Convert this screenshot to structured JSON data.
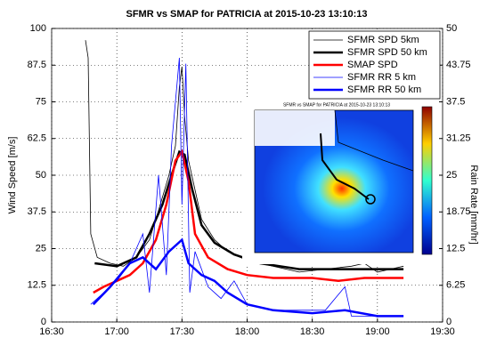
{
  "chart_data": {
    "type": "line",
    "title": "SFMR vs SMAP for PATRICIA at 2015-10-23 13:10:13",
    "ylabel": "Wind Speed [m/s]",
    "y2label": "Rain Rate [mm/hr]",
    "xlim": [
      16.5,
      19.5
    ],
    "xticks": [
      {
        "value": 16.5,
        "label": "16:30"
      },
      {
        "value": 17,
        "label": "17:00"
      },
      {
        "value": 17.5,
        "label": "17:30"
      },
      {
        "value": 18,
        "label": "18:00"
      },
      {
        "value": 18.5,
        "label": "18:30"
      },
      {
        "value": 19,
        "label": "19:00"
      },
      {
        "value": 19.5,
        "label": "19:30"
      }
    ],
    "ylim": [
      0,
      100
    ],
    "yticks": [
      0,
      12.5,
      25,
      37.5,
      50,
      62.5,
      75,
      87.5,
      100
    ],
    "y2lim": [
      0,
      50
    ],
    "y2ticks": [
      0,
      6.25,
      12.5,
      18.75,
      25,
      31.25,
      37.5,
      43.75,
      50
    ],
    "grid": true,
    "legend": "upper right",
    "series": [
      {
        "name": "SFMR SPD 5km",
        "color": "#000000",
        "width": 0.8,
        "x": [
          16.76,
          16.78,
          16.8,
          16.85,
          16.95,
          17.05,
          17.15,
          17.25,
          17.32,
          17.4,
          17.45,
          17.48,
          17.5,
          17.52,
          17.55,
          17.6,
          17.65,
          17.75,
          17.85,
          18.0,
          18.2,
          18.4,
          18.6,
          18.8,
          18.9,
          19.0,
          19.1,
          19.2
        ],
        "values": [
          96,
          90,
          30,
          22,
          20,
          19,
          22,
          28,
          38,
          50,
          60,
          80,
          87,
          70,
          55,
          45,
          35,
          28,
          24,
          21,
          19,
          17,
          18,
          19,
          20,
          17,
          18,
          19
        ]
      },
      {
        "name": "SFMR SPD 50 km",
        "color": "#000000",
        "width": 2.5,
        "x": [
          16.83,
          17.0,
          17.15,
          17.25,
          17.35,
          17.42,
          17.48,
          17.52,
          17.58,
          17.65,
          17.75,
          17.9,
          18.1,
          18.4,
          18.7,
          18.9,
          19.1,
          19.2
        ],
        "values": [
          20,
          19,
          22,
          30,
          40,
          50,
          58,
          57,
          45,
          33,
          27,
          23,
          20,
          18,
          18,
          18,
          18,
          18
        ]
      },
      {
        "name": "SMAP SPD",
        "color": "#ff0000",
        "width": 2.5,
        "x": [
          16.82,
          16.9,
          17.0,
          17.1,
          17.2,
          17.3,
          17.38,
          17.45,
          17.5,
          17.55,
          17.6,
          17.7,
          17.85,
          18.0,
          18.2,
          18.5,
          18.7,
          18.9,
          19.1,
          19.2
        ],
        "values": [
          10,
          12,
          14,
          16,
          20,
          28,
          40,
          55,
          58,
          48,
          30,
          22,
          18,
          16,
          15,
          15,
          14,
          15,
          15,
          15
        ]
      },
      {
        "name": "SFMR RR 5 km",
        "color": "#0000ff",
        "width": 0.8,
        "axis": "y2",
        "x": [
          16.8,
          16.9,
          17.0,
          17.1,
          17.2,
          17.25,
          17.32,
          17.38,
          17.42,
          17.48,
          17.5,
          17.53,
          17.56,
          17.6,
          17.7,
          17.8,
          17.9,
          18.0,
          18.2,
          18.4,
          18.6,
          18.75,
          18.8,
          19.0,
          19.2
        ],
        "values": [
          3,
          5,
          7,
          10,
          15,
          5,
          25,
          8,
          30,
          45,
          20,
          44,
          5,
          12,
          6,
          4,
          7,
          3,
          2,
          2,
          2,
          6,
          1,
          1,
          1
        ]
      },
      {
        "name": "SFMR RR 50 km",
        "color": "#0000ff",
        "width": 2.5,
        "axis": "y2",
        "x": [
          16.82,
          16.95,
          17.1,
          17.2,
          17.3,
          17.4,
          17.5,
          17.55,
          17.65,
          17.75,
          17.85,
          18.0,
          18.2,
          18.5,
          18.75,
          19.0,
          19.2
        ],
        "values": [
          3,
          6,
          10,
          11,
          9,
          12,
          14,
          10,
          8,
          7,
          5,
          3,
          2,
          1.5,
          2,
          1,
          1
        ]
      }
    ]
  },
  "inset": {
    "title": "SFMR vs SMAP for PATRICIA at 2015-10-23 13:10:13"
  }
}
